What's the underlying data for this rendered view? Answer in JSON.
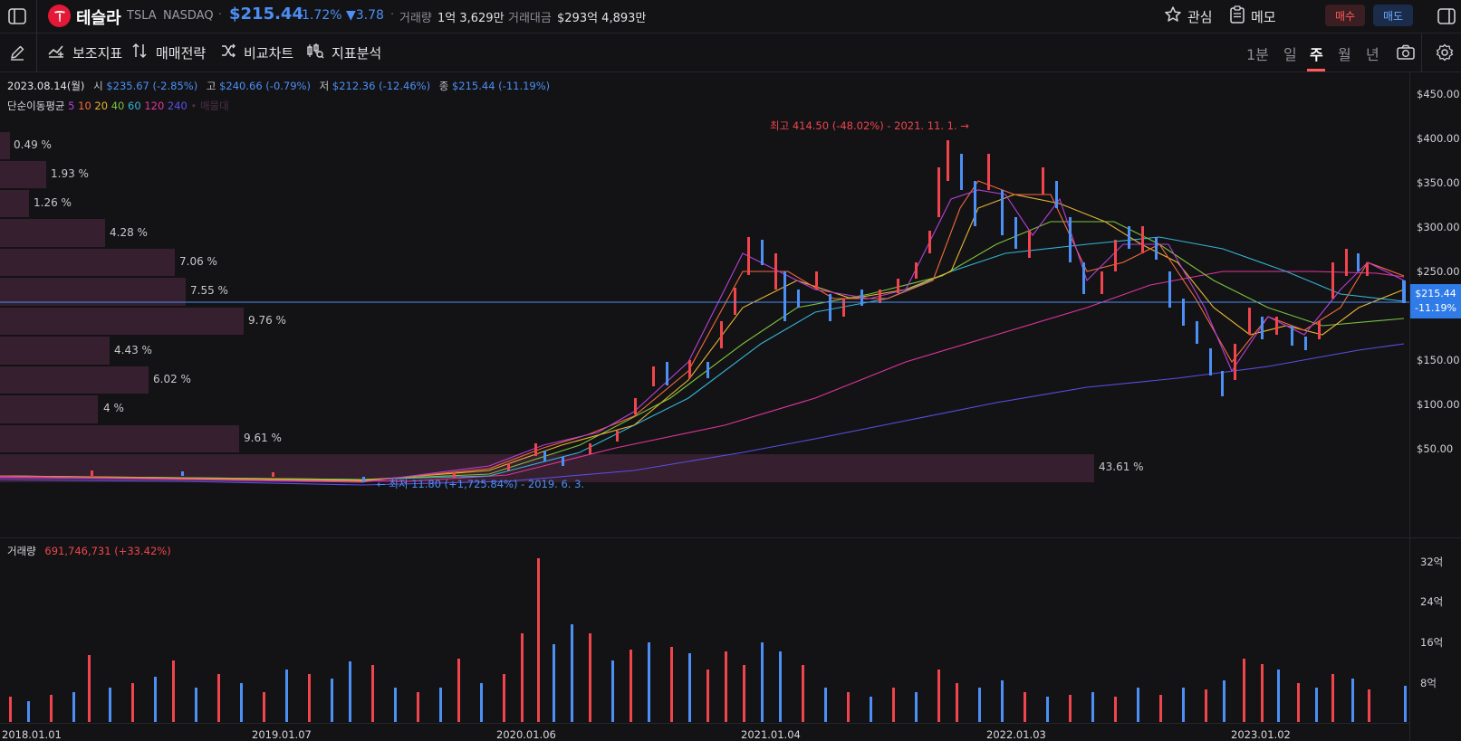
{
  "header": {
    "name": "테슬라",
    "ticker": "TSLA",
    "exchange": "NASDAQ",
    "price": "$215.44",
    "change_pct": "-1.72%",
    "change_abs": "▼3.78",
    "volume_label": "거래량",
    "volume_value": "1억 3,629만",
    "amount_label": "거래대금",
    "amount_value": "$293억 4,893만",
    "watch_label": "관심",
    "memo_label": "메모",
    "buy_label": "매수",
    "sell_label": "매도"
  },
  "toolbar": {
    "tools": [
      {
        "label": "보조지표",
        "icon": "indicator-icon"
      },
      {
        "label": "매매전략",
        "icon": "strategy-icon"
      },
      {
        "label": "비교차트",
        "icon": "compare-icon"
      },
      {
        "label": "지표분석",
        "icon": "analysis-icon"
      }
    ],
    "periods": [
      "1분",
      "일",
      "주",
      "월",
      "년"
    ],
    "active_period": "주"
  },
  "ohlc": {
    "date": "2023.08.14(월)",
    "open_label": "시",
    "open": "$235.67 (-2.85%)",
    "high_label": "고",
    "high": "$240.66 (-0.79%)",
    "low_label": "저",
    "low": "$212.36 (-12.46%)",
    "close_label": "종",
    "close": "$215.44 (-11.19%)"
  },
  "ma_legend": {
    "label": "단순이동평균",
    "periods": [
      {
        "value": "5",
        "color": "#b640d6"
      },
      {
        "value": "10",
        "color": "#f46a3c"
      },
      {
        "value": "20",
        "color": "#e6b434"
      },
      {
        "value": "40",
        "color": "#7cc13d"
      },
      {
        "value": "60",
        "color": "#33b4d6"
      },
      {
        "value": "120",
        "color": "#e0359b"
      },
      {
        "value": "240",
        "color": "#5a4fe0"
      }
    ],
    "extra": "• 매물대"
  },
  "annotations": {
    "high": "최고 414.50 (-48.02%) - 2021. 11. 1. →",
    "low": "← 최저 11.80 (+1,725.84%) - 2019. 6. 3."
  },
  "last_price": {
    "price": "$215.44",
    "pct": "-11.19%"
  },
  "volume_profile": [
    "0.49 %",
    "1.93 %",
    "1.26 %",
    "4.28 %",
    "7.06 %",
    "7.55 %",
    "9.76 %",
    "4.43 %",
    "6.02 %",
    "4 %",
    "9.61 %",
    "43.61 %"
  ],
  "volume_pane": {
    "label": "거래량",
    "value": "691,746,731 (+33.42%)"
  },
  "colors": {
    "up": "#f0454c",
    "down": "#4c8ff5",
    "background": "#131316"
  },
  "chart_data": {
    "type": "candlestick",
    "title": "",
    "y_axis_ticks": [
      "$450.00",
      "$400.00",
      "$350.00",
      "$300.00",
      "$250.00",
      "$150.00",
      "$100.00",
      "$50.00"
    ],
    "x_axis_ticks": [
      "2018.01.01",
      "2019.01.07",
      "2020.01.06",
      "2021.01.04",
      "2022.01.03",
      "2023.01.02"
    ],
    "volume_axis_ticks": [
      "32억",
      "24억",
      "16억",
      "8억"
    ],
    "ylim": [
      0,
      470
    ],
    "close_approx": [
      {
        "x": "2018.01",
        "y": 21
      },
      {
        "x": "2018.07",
        "y": 21
      },
      {
        "x": "2019.01",
        "y": 20
      },
      {
        "x": "2019.06",
        "y": 12
      },
      {
        "x": "2020.01",
        "y": 36
      },
      {
        "x": "2020.02",
        "y": 60
      },
      {
        "x": "2020.03",
        "y": 30
      },
      {
        "x": "2020.07",
        "y": 100
      },
      {
        "x": "2020.09",
        "y": 145
      },
      {
        "x": "2021.01",
        "y": 270
      },
      {
        "x": "2021.02",
        "y": 290
      },
      {
        "x": "2021.05",
        "y": 195
      },
      {
        "x": "2021.09",
        "y": 250
      },
      {
        "x": "2021.11",
        "y": 410
      },
      {
        "x": "2022.01",
        "y": 340
      },
      {
        "x": "2022.03",
        "y": 360
      },
      {
        "x": "2022.05",
        "y": 230
      },
      {
        "x": "2022.08",
        "y": 300
      },
      {
        "x": "2022.10",
        "y": 220
      },
      {
        "x": "2023.01",
        "y": 110
      },
      {
        "x": "2023.02",
        "y": 200
      },
      {
        "x": "2023.04",
        "y": 165
      },
      {
        "x": "2023.06",
        "y": 260
      },
      {
        "x": "2023.07",
        "y": 290
      },
      {
        "x": "2023.08",
        "y": 215
      }
    ]
  }
}
